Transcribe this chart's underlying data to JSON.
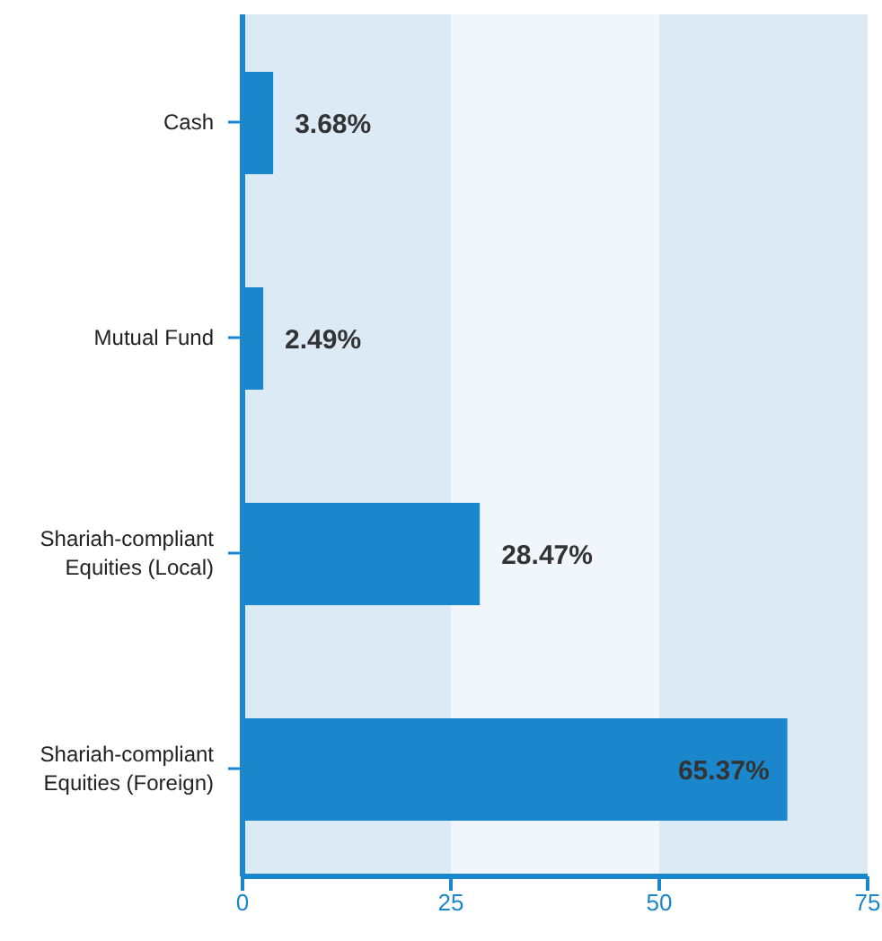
{
  "chart_data": {
    "type": "bar",
    "orientation": "horizontal",
    "categories": [
      "Cash",
      "Mutual Fund",
      "Shariah-compliant Equities (Local)",
      "Shariah-compliant Equities (Foreign)"
    ],
    "values": [
      3.68,
      2.49,
      28.47,
      65.37
    ],
    "color": "#1a87cd",
    "value_labels": [
      "3.68%",
      "2.49%",
      "28.47%",
      "65.37%"
    ],
    "xlim": [
      0,
      75
    ],
    "xticks": [
      0,
      25,
      50,
      75
    ],
    "bands": [
      {
        "axis": "x",
        "from": 0,
        "to": 25,
        "color": "#dceaf6"
      },
      {
        "axis": "x",
        "from": 25,
        "to": 50,
        "color": "#f0f6fc"
      },
      {
        "axis": "x",
        "from": 50,
        "to": 75,
        "color": "#dceaf6"
      }
    ]
  }
}
